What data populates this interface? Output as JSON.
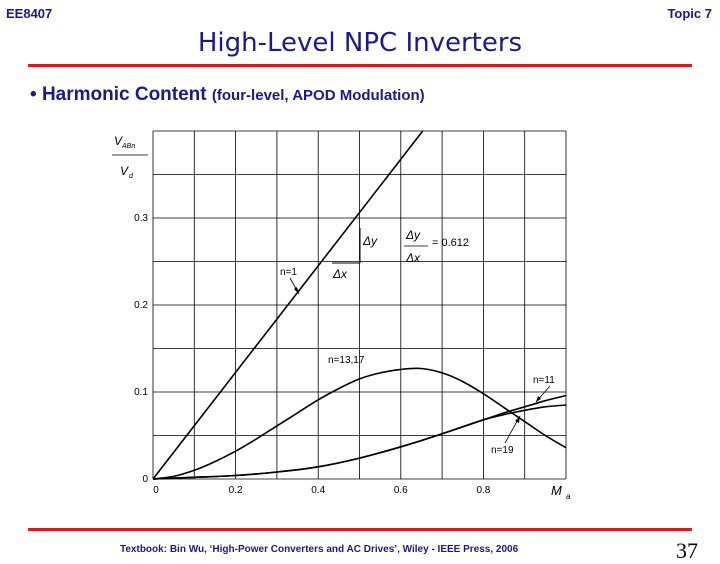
{
  "header": {
    "course": "EE8407",
    "topic": "Topic 7",
    "title": "High-Level NPC Inverters"
  },
  "bullet": {
    "symbol": "•",
    "main": "Harmonic Content",
    "sub": "(four-level, APOD Modulation)"
  },
  "footer": {
    "text": "Textbook: Bin Wu, ‘High-Power Converters and AC Drives’, Wiley - IEEE Press, 2006",
    "page": "37"
  },
  "colors": {
    "accent": "#1a1a8c",
    "rule": "#cc2020"
  },
  "chart_data": {
    "type": "line",
    "y_label_numerator": "V",
    "y_label_numerator_sub": "ABn",
    "y_label_denominator": "V",
    "y_label_denominator_sub": "d",
    "x_label": "M",
    "x_label_sub": "a",
    "xlim": [
      0,
      1.0
    ],
    "ylim": [
      0,
      0.4
    ],
    "x_ticks": [
      "0",
      "0.2",
      "0.4",
      "0.6",
      "0.8"
    ],
    "x_tick_values": [
      0,
      0.2,
      0.4,
      0.6,
      0.8
    ],
    "y_ticks": [
      "0",
      "0.1",
      "0.2",
      "0.3"
    ],
    "y_tick_values": [
      0,
      0.1,
      0.2,
      0.3
    ],
    "grid": true,
    "series": [
      {
        "name": "n=1",
        "x": [
          0,
          0.653
        ],
        "y": [
          0,
          0.4
        ]
      },
      {
        "name": "n=13,17",
        "x": [
          0,
          0.05,
          0.1,
          0.15,
          0.2,
          0.25,
          0.3,
          0.35,
          0.4,
          0.45,
          0.5,
          0.55,
          0.6,
          0.65,
          0.7,
          0.75,
          0.8,
          0.85,
          0.9,
          0.95,
          1.0
        ],
        "y": [
          0,
          0.003,
          0.01,
          0.02,
          0.032,
          0.046,
          0.061,
          0.076,
          0.091,
          0.104,
          0.115,
          0.122,
          0.126,
          0.127,
          0.122,
          0.112,
          0.098,
          0.082,
          0.066,
          0.05,
          0.036
        ]
      },
      {
        "name": "n=11",
        "x": [
          0,
          0.1,
          0.2,
          0.3,
          0.4,
          0.5,
          0.6,
          0.7,
          0.8,
          0.85,
          0.9,
          0.95,
          1.0
        ],
        "y": [
          0,
          0.002,
          0.004,
          0.008,
          0.014,
          0.024,
          0.037,
          0.052,
          0.068,
          0.076,
          0.083,
          0.09,
          0.096
        ]
      },
      {
        "name": "n=19",
        "x": [
          0,
          0.1,
          0.2,
          0.3,
          0.4,
          0.5,
          0.6,
          0.7,
          0.8,
          0.85,
          0.9,
          0.95,
          1.0
        ],
        "y": [
          0,
          0.002,
          0.004,
          0.008,
          0.014,
          0.024,
          0.037,
          0.052,
          0.068,
          0.074,
          0.079,
          0.083,
          0.085
        ]
      }
    ],
    "annotations": {
      "n1": "n=1",
      "n1317": "n=13,17",
      "n11": "n=11",
      "n19": "n=19",
      "dy": "Δy",
      "dx": "Δx",
      "slope_label_num": "Δy",
      "slope_label_den": "Δx",
      "slope_value": "= 0.612"
    }
  }
}
